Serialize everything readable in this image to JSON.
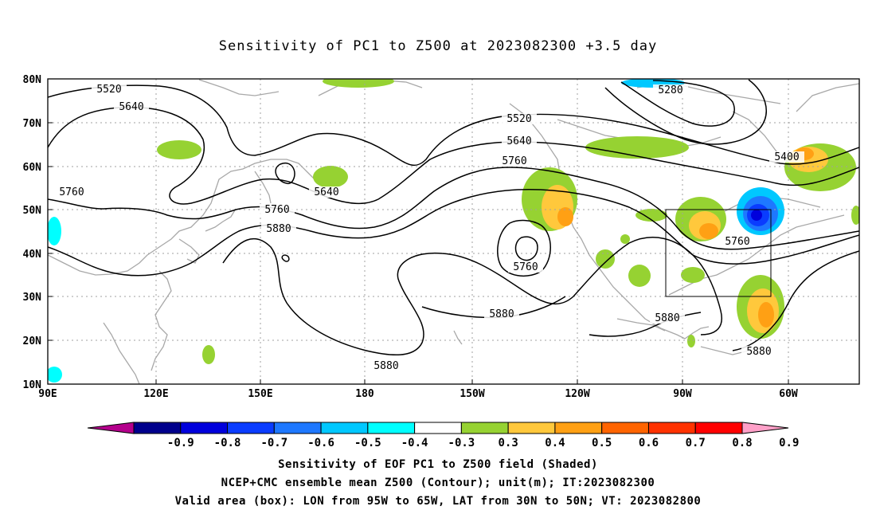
{
  "title": "Sensitivity of PC1 to Z500 at 2023082300 +3.5 day",
  "lat_labels": [
    "80N",
    "70N",
    "60N",
    "50N",
    "40N",
    "30N",
    "20N",
    "10N"
  ],
  "lon_labels": [
    "90E",
    "120E",
    "150E",
    "180",
    "150W",
    "120W",
    "90W",
    "60W"
  ],
  "contour_labels": [
    "5520",
    "5640",
    "5760",
    "5640",
    "5760",
    "5880",
    "5520",
    "5640",
    "5760",
    "5280",
    "5400",
    "5760",
    "5760",
    "5880",
    "5880",
    "5880",
    "5880"
  ],
  "colorbar": {
    "colors": [
      "#b4008c",
      "#00008c",
      "#0000dc",
      "#0a3cff",
      "#1e78ff",
      "#00c8ff",
      "#00ffff",
      "#ffffff",
      "#96d232",
      "#ffc83c",
      "#ffa014",
      "#ff6400",
      "#ff3200",
      "#ff0000",
      "#ffa0c8"
    ],
    "labels": [
      "-0.9",
      "-0.8",
      "-0.7",
      "-0.6",
      "-0.5",
      "-0.4",
      "-0.3",
      "0.3",
      "0.4",
      "0.5",
      "0.6",
      "0.7",
      "0.8",
      "0.9"
    ]
  },
  "captions": [
    "Sensitivity of EOF PC1 to Z500 field (Shaded)",
    "NCEP+CMC ensemble mean Z500 (Contour); unit(m); IT:2023082300",
    "Valid area (box): LON from 95W to 65W, LAT from 30N to 50N; VT: 2023082800"
  ]
}
